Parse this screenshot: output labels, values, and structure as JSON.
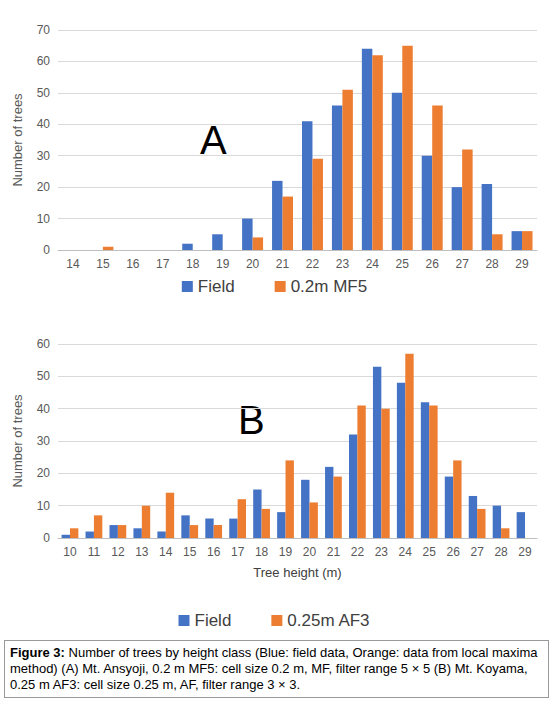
{
  "chart_data": [
    {
      "type": "bar",
      "annotation": "A",
      "y_label": "Number of trees",
      "categories": [
        "14",
        "15",
        "16",
        "17",
        "18",
        "19",
        "20",
        "21",
        "22",
        "23",
        "24",
        "25",
        "26",
        "27",
        "28",
        "29"
      ],
      "series": [
        {
          "name": "Field",
          "color": "#4472c4",
          "values": [
            0,
            0,
            0,
            0,
            2,
            5,
            10,
            22,
            41,
            46,
            64,
            50,
            30,
            20,
            21,
            6
          ]
        },
        {
          "name": "0.2m MF5",
          "color": "#ed7d31",
          "values": [
            0,
            1,
            0,
            0,
            0,
            0,
            4,
            17,
            29,
            51,
            62,
            65,
            46,
            32,
            5,
            6
          ]
        }
      ],
      "ylim": [
        0,
        70
      ],
      "yticks": [
        0,
        10,
        20,
        30,
        40,
        50,
        60,
        70
      ],
      "grid": true,
      "legend": "bottom"
    },
    {
      "type": "bar",
      "annotation": "B",
      "y_label": "Number of trees",
      "x_label": "Tree height (m)",
      "categories": [
        "10",
        "11",
        "12",
        "13",
        "14",
        "15",
        "16",
        "17",
        "18",
        "19",
        "20",
        "21",
        "22",
        "23",
        "24",
        "25",
        "26",
        "27",
        "28",
        "29"
      ],
      "series": [
        {
          "name": "Field",
          "color": "#4472c4",
          "values": [
            1,
            2,
            4,
            3,
            2,
            7,
            6,
            6,
            15,
            8,
            18,
            22,
            32,
            53,
            48,
            42,
            19,
            13,
            10,
            8
          ]
        },
        {
          "name": "0.25m AF3",
          "color": "#ed7d31",
          "values": [
            3,
            7,
            4,
            10,
            14,
            4,
            4,
            12,
            9,
            24,
            11,
            19,
            41,
            40,
            57,
            41,
            24,
            9,
            3,
            0
          ]
        }
      ],
      "ylim": [
        0,
        60
      ],
      "yticks": [
        0,
        10,
        20,
        30,
        40,
        50,
        60
      ],
      "grid": true,
      "legend": "bottom"
    }
  ],
  "caption": {
    "label": "Figure 3:",
    "text": "Number of trees by height class (Blue: field data, Orange: data from local maxima method) (A) Mt. Ansyoji, 0.2 m MF5: cell size 0.2 m, MF, filter range 5 × 5 (B) Mt. Koyama, 0.25 m AF3: cell size 0.25 m, AF, filter range 3 × 3."
  }
}
